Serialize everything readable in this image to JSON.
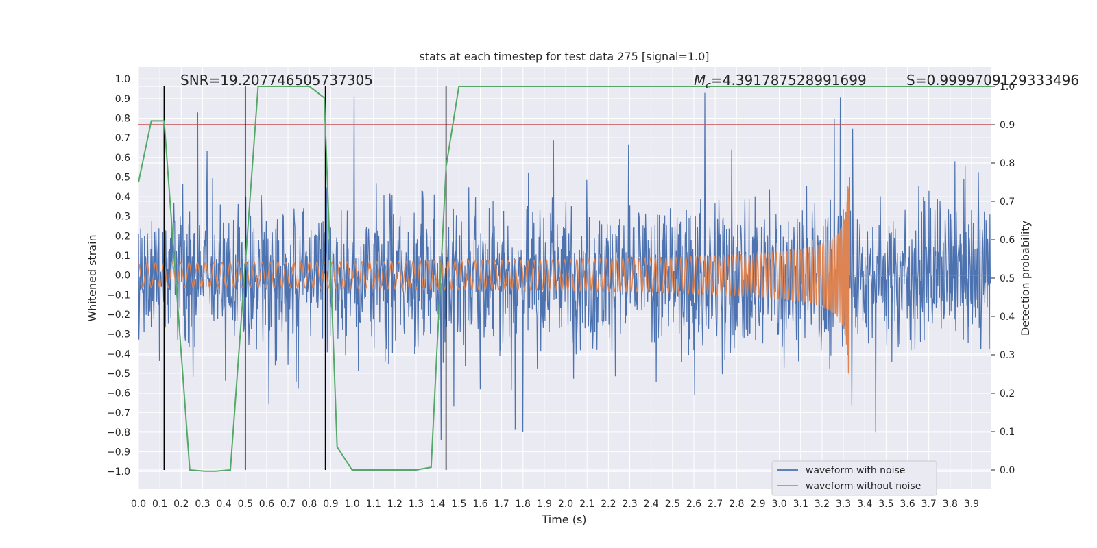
{
  "chart_data": {
    "type": "line",
    "title": "stats at each timestep for test data 275 [signal=1.0]",
    "xlabel": "Time (s)",
    "ylabel": "Whitened strain",
    "ylabel_right": "Detection probability",
    "xlim": [
      0.0,
      3.99
    ],
    "ylim": [
      -1.09,
      1.06
    ],
    "ylim_right": [
      -0.05,
      1.05
    ],
    "x_ticks": [
      0.0,
      0.1,
      0.2,
      0.3,
      0.4,
      0.5,
      0.6,
      0.7,
      0.8,
      0.9,
      1.0,
      1.1,
      1.2,
      1.3,
      1.4,
      1.5,
      1.6,
      1.7,
      1.8,
      1.9,
      2.0,
      2.1,
      2.2,
      2.3,
      2.4,
      2.5,
      2.6,
      2.7,
      2.8,
      2.9,
      3.0,
      3.1,
      3.2,
      3.3,
      3.4,
      3.5,
      3.6,
      3.7,
      3.8,
      3.9
    ],
    "x_tick_labels": [
      "0.0",
      "0.1",
      "0.2",
      "0.3",
      "0.4",
      "0.5",
      "0.6",
      "0.7",
      "0.8",
      "0.9",
      "1.0",
      "1.1",
      "1.2",
      "1.3",
      "1.4",
      "1.5",
      "1.6",
      "1.7",
      "1.8",
      "1.9",
      "2.0",
      "2.1",
      "2.2",
      "2.3",
      "2.4",
      "2.5",
      "2.6",
      "2.7",
      "2.8",
      "2.9",
      "3.0",
      "3.1",
      "3.2",
      "3.3",
      "3.4",
      "3.5",
      "3.6",
      "3.7",
      "3.8",
      "3.9"
    ],
    "y_ticks": [
      -1.0,
      -0.9,
      -0.8,
      -0.7,
      -0.6,
      -0.5,
      -0.4,
      -0.3,
      -0.2,
      -0.1,
      0.0,
      0.1,
      0.2,
      0.3,
      0.4,
      0.5,
      0.6,
      0.7,
      0.8,
      0.9,
      1.0
    ],
    "y_tick_labels": [
      "−1.0",
      "−0.9",
      "−0.8",
      "−0.7",
      "−0.6",
      "−0.5",
      "−0.4",
      "−0.3",
      "−0.2",
      "−0.1",
      "0.0",
      "0.1",
      "0.2",
      "0.3",
      "0.4",
      "0.5",
      "0.6",
      "0.7",
      "0.8",
      "0.9",
      "1.0"
    ],
    "y_right_ticks": [
      0.0,
      0.1,
      0.2,
      0.3,
      0.4,
      0.5,
      0.6,
      0.7,
      0.8,
      0.9,
      1.0
    ],
    "y_right_tick_labels": [
      "0.0",
      "0.1",
      "0.2",
      "0.3",
      "0.4",
      "0.5",
      "0.6",
      "0.7",
      "0.8",
      "0.9",
      "1.0"
    ],
    "annotations": {
      "snr": "SNR=19.207746505737305",
      "mc_symbol": "M",
      "mc_subscript": "c",
      "mc_value": "=4.391787528991699",
      "s": "S=0.9999709129333496"
    },
    "series": [
      {
        "name": "waveform with noise",
        "color": "#4c72b0",
        "style": "noisy strain, spikes roughly within ±0.5, peaks near ±1.0"
      },
      {
        "name": "waveform without noise",
        "color": "#dd8452",
        "style": "chirp, amplitude grows from ~0.06 to ~0.52 ending at t≈3.33 s, flat 0.0 afterwards",
        "merger_time": 3.33,
        "start_amplitude": 0.06,
        "peak_amplitude": 0.52
      },
      {
        "name": "detection probability",
        "color": "#55a868",
        "axis": "right",
        "x": [
          0.0,
          0.06,
          0.12,
          0.24,
          0.31,
          0.36,
          0.43,
          0.56,
          0.8,
          0.87,
          0.93,
          1.0,
          1.3,
          1.37,
          1.44,
          1.5,
          3.99
        ],
        "y": [
          0.75,
          0.91,
          0.91,
          0.0,
          -0.003,
          -0.003,
          0.0,
          1.0,
          1.0,
          0.97,
          0.06,
          0.0,
          0.0,
          0.007,
          0.79,
          1.0,
          1.0
        ]
      }
    ],
    "threshold_line": {
      "value": 0.9,
      "axis": "right",
      "color": "#c44e52"
    },
    "vertical_markers": {
      "x": [
        0.12,
        0.5,
        0.875,
        1.44
      ],
      "color": "#000000"
    },
    "legend": {
      "location": "lower-right",
      "entries": [
        "waveform with noise",
        "waveform without noise"
      ]
    },
    "grid": true
  }
}
